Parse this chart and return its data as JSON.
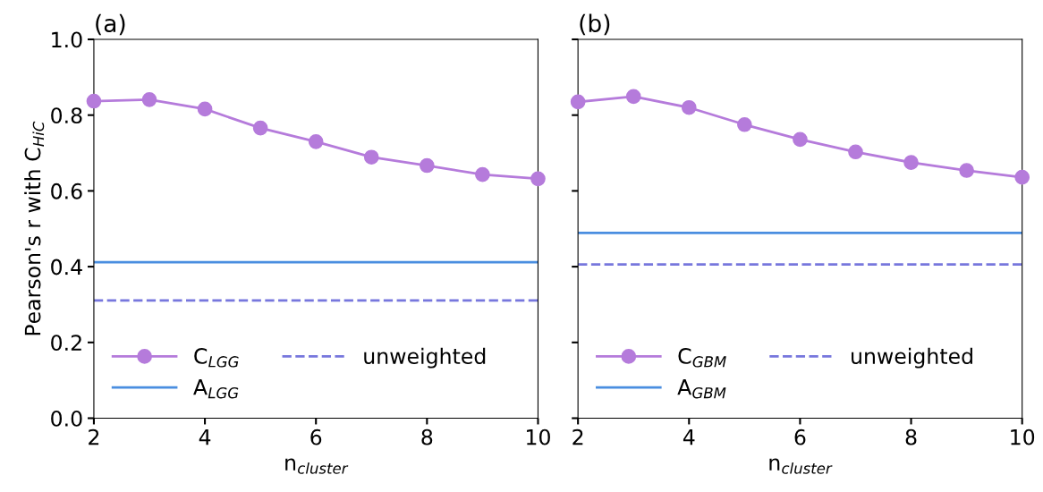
{
  "chart_data": [
    {
      "type": "line",
      "title": "(a)",
      "xlabel": "n$_{cluster}$",
      "ylabel": "Pearson's r with C$_{HiC}$",
      "x": [
        2,
        3,
        4,
        5,
        6,
        7,
        8,
        9,
        10
      ],
      "xlim": [
        2,
        10
      ],
      "ylim": [
        0,
        1
      ],
      "xticks": [
        2,
        4,
        6,
        8,
        10
      ],
      "yticks": [
        {
          "value": 0,
          "label": "0.0"
        },
        0.2,
        0.4,
        0.6,
        0.8,
        {
          "value": 1,
          "label": "1.0"
        }
      ],
      "legend": "bottom left",
      "series": [
        {
          "name": "C$_{LGG}$",
          "color": "#b57bdb",
          "marker": "circle",
          "values": [
            0.837,
            0.841,
            0.816,
            0.766,
            0.73,
            0.689,
            0.667,
            0.643,
            0.632
          ]
        }
      ],
      "ref_lines": [
        {
          "axis": "y",
          "value": 0.412,
          "label": "A$_{LGG}$",
          "color": "#4a8ee0",
          "line_style": "solid"
        },
        {
          "axis": "y",
          "value": 0.311,
          "label": "unweighted",
          "color": "#7777dd",
          "line_style": "dashed"
        }
      ]
    },
    {
      "type": "line",
      "title": "(b)",
      "xlabel": "n$_{cluster}$",
      "x": [
        2,
        3,
        4,
        5,
        6,
        7,
        8,
        9,
        10
      ],
      "xlim": [
        2,
        10
      ],
      "ylim": [
        0,
        1
      ],
      "xticks": [
        2,
        4,
        6,
        8,
        10
      ],
      "yticks": [
        0,
        0.2,
        0.4,
        0.6,
        0.8,
        1
      ],
      "tick_labels": "x",
      "legend": "bottom left",
      "series": [
        {
          "name": "C$_{GBM}$",
          "color": "#b57bdb",
          "marker": "circle",
          "values": [
            0.835,
            0.849,
            0.82,
            0.775,
            0.736,
            0.703,
            0.675,
            0.654,
            0.636
          ]
        }
      ],
      "ref_lines": [
        {
          "axis": "y",
          "value": 0.489,
          "label": "A$_{GBM}$",
          "color": "#4a8ee0",
          "line_style": "solid"
        },
        {
          "axis": "y",
          "value": 0.406,
          "label": "unweighted",
          "color": "#7777dd",
          "line_style": "dashed"
        }
      ]
    }
  ]
}
